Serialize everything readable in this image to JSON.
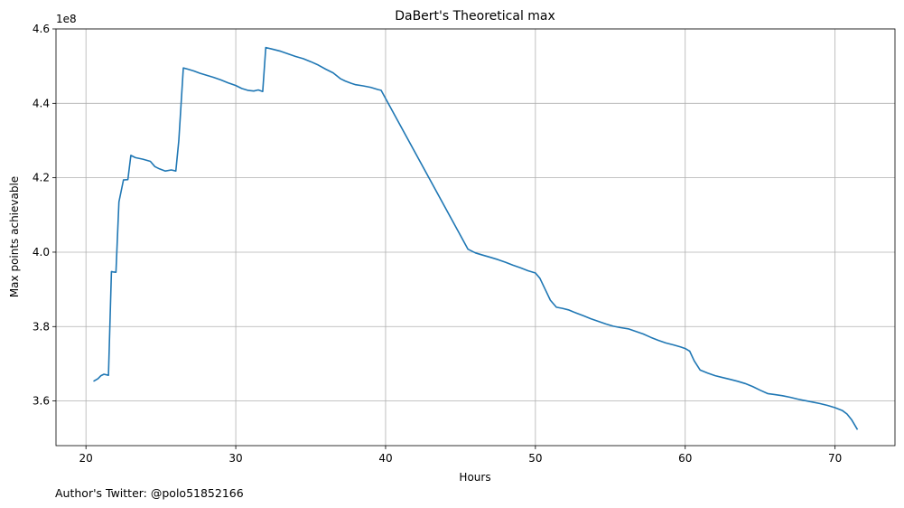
{
  "chart_data": {
    "type": "line",
    "title": "DaBert's Theoretical max",
    "xlabel": "Hours",
    "ylabel": "Max points achievable",
    "y_offset_label": "1e8",
    "xlim": [
      18,
      74
    ],
    "ylim": [
      348000000,
      460000000
    ],
    "xticks": [
      20,
      30,
      40,
      50,
      60,
      70
    ],
    "xtick_labels": [
      "20",
      "30",
      "40",
      "50",
      "60",
      "70"
    ],
    "yticks": [
      360000000,
      380000000,
      400000000,
      420000000,
      440000000,
      460000000
    ],
    "ytick_labels": [
      "3.6",
      "3.8",
      "4.0",
      "4.2",
      "4.4",
      "4.6"
    ],
    "grid": true,
    "line_color": "#1f77b4",
    "series": [
      {
        "x": [
          20.5,
          20.8,
          21.0,
          21.2,
          21.5,
          21.7,
          21.8,
          22.0,
          22.2,
          22.5,
          22.8,
          23.0,
          23.3,
          23.8,
          24.3,
          24.6,
          24.9,
          25.3,
          25.7,
          26.0,
          26.2,
          26.5,
          26.8,
          27.2,
          27.6,
          28.0,
          28.5,
          29.0,
          29.5,
          30.0,
          30.4,
          30.8,
          31.2,
          31.5,
          31.8,
          32.0,
          32.4,
          33.0,
          33.5,
          34.0,
          34.5,
          35.0,
          35.5,
          36.0,
          36.5,
          37.0,
          37.3,
          37.7,
          38.0,
          38.5,
          39.0,
          39.5,
          39.7,
          45.5,
          46.0,
          46.5,
          47.0,
          47.5,
          48.0,
          48.5,
          49.0,
          49.5,
          50.0,
          50.3,
          50.7,
          51.0,
          51.4,
          51.8,
          52.2,
          52.7,
          53.2,
          53.7,
          54.2,
          54.7,
          55.2,
          55.7,
          56.2,
          56.7,
          57.2,
          57.7,
          58.2,
          58.7,
          59.2,
          59.7,
          60.0,
          60.3,
          60.6,
          61.0,
          61.5,
          62.0,
          62.5,
          63.0,
          63.5,
          64.0,
          64.5,
          65.0,
          65.5,
          66.0,
          66.5,
          67.0,
          67.5,
          68.0,
          68.5,
          69.0,
          69.5,
          70.0,
          70.5,
          70.8,
          71.1,
          71.5
        ],
        "y": [
          365300000,
          366000000,
          366800000,
          367200000,
          366900000,
          394800000,
          394700000,
          394600000,
          413500000,
          419400000,
          419500000,
          426000000,
          425400000,
          425000000,
          424400000,
          423000000,
          422400000,
          421800000,
          422100000,
          421800000,
          430000000,
          449500000,
          449200000,
          448700000,
          448100000,
          447600000,
          447000000,
          446300000,
          445500000,
          444800000,
          444000000,
          443500000,
          443300000,
          443600000,
          443200000,
          455000000,
          454600000,
          454000000,
          453300000,
          452600000,
          452000000,
          451200000,
          450300000,
          449200000,
          448200000,
          446600000,
          446000000,
          445400000,
          445000000,
          444700000,
          444300000,
          443700000,
          443500000,
          400800000,
          399800000,
          399200000,
          398600000,
          398000000,
          397300000,
          396500000,
          395800000,
          395000000,
          394400000,
          393000000,
          389600000,
          387100000,
          385200000,
          384900000,
          384500000,
          383700000,
          382900000,
          382100000,
          381400000,
          380700000,
          380100000,
          379700000,
          379400000,
          378700000,
          378000000,
          377100000,
          376300000,
          375600000,
          375100000,
          374500000,
          374100000,
          373400000,
          370800000,
          368300000,
          367500000,
          366800000,
          366300000,
          365800000,
          365300000,
          364700000,
          363900000,
          362900000,
          362000000,
          361700000,
          361400000,
          361000000,
          360500000,
          360100000,
          359700000,
          359300000,
          358800000,
          358200000,
          357400000,
          356500000,
          355000000,
          352300000
        ]
      }
    ]
  },
  "footer": {
    "credit": "Author's Twitter: @polo51852166"
  }
}
